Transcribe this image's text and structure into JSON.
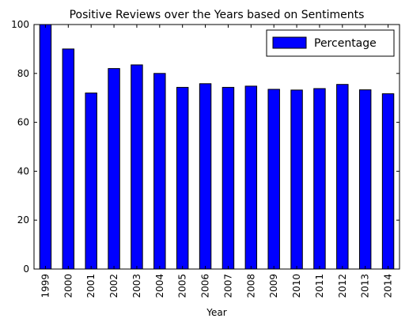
{
  "chart_data": {
    "type": "bar",
    "title": "Positive Reviews over the Years based on Sentiments",
    "xlabel": "Year",
    "ylabel": "",
    "categories": [
      "1999",
      "2000",
      "2001",
      "2002",
      "2003",
      "2004",
      "2005",
      "2006",
      "2007",
      "2008",
      "2009",
      "2010",
      "2011",
      "2012",
      "2013",
      "2014"
    ],
    "series": [
      {
        "name": "Percentage",
        "values": [
          100,
          90,
          72,
          82,
          83.5,
          80,
          74.3,
          75.8,
          74.3,
          74.8,
          73.5,
          73.2,
          73.8,
          75.5,
          73.3,
          71.7
        ],
        "color": "#0000ff"
      }
    ],
    "ylim": [
      0,
      100
    ],
    "yticks": [
      0,
      20,
      40,
      60,
      80,
      100
    ],
    "legend": "top-right",
    "grid": false
  }
}
